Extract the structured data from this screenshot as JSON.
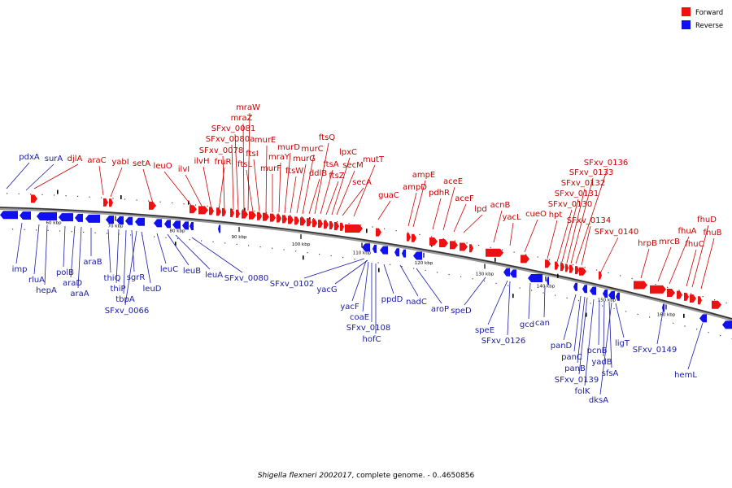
{
  "legend": {
    "forward_label": "Forward",
    "reverse_label": "Reverse",
    "forward_color": "#ee1111",
    "reverse_color": "#1111ee"
  },
  "caption": {
    "organism": "Shigella flexneri 2002017",
    "rest": ", complete genome. - 0..4650856"
  },
  "ticks": [
    "60 kbp",
    "70 kbp",
    "80 kbp",
    "90 kbp",
    "100 kbp",
    "110 kbp",
    "120 kbp",
    "130 kbp",
    "140 kbp",
    "150 kbp",
    "160 kbp"
  ],
  "forward_genes": [
    "djlA",
    "araC",
    "yabI",
    "setA",
    "leuO",
    "ilvI",
    "ilvH",
    "fruR",
    "SFxv_0078",
    "SFxv_0080a",
    "SFxv_0081",
    "mraZ",
    "mraW",
    "ftsL",
    "ftsI",
    "murE",
    "murF",
    "mraY",
    "murD",
    "ftsW",
    "murG",
    "murC",
    "ddlB",
    "ftsQ",
    "ftsA",
    "ftsZ",
    "lpxC",
    "secM",
    "secA",
    "mutT",
    "guaC",
    "ampD",
    "ampE",
    "pdhR",
    "aceE",
    "aceF",
    "lpd",
    "acnB",
    "yacL",
    "cueO",
    "hpt",
    "SFxv_0130",
    "SFxv_0131",
    "SFxv_0132",
    "SFxv_0133",
    "SFxv_0136",
    "SFxv_0134",
    "SFxv_0140",
    "hrpB",
    "mrcB",
    "fhuA",
    "fhuC",
    "fhuD",
    "fhuB"
  ],
  "reverse_genes": [
    "pdxA",
    "surA",
    "imp",
    "rluA",
    "hepA",
    "polB",
    "araD",
    "araA",
    "araB",
    "thiQ",
    "thiP",
    "tbpA",
    "sgrR",
    "SFxv_0066",
    "leuD",
    "leuC",
    "leuB",
    "leuA",
    "SFxv_0080",
    "SFxv_0102",
    "yacG",
    "yacF",
    "coaE",
    "SFxv_0108",
    "hofC",
    "ppdD",
    "nadC",
    "aroP",
    "speD",
    "speE",
    "SFxv_0126",
    "gcd",
    "can",
    "panD",
    "panC",
    "panB",
    "SFxv_0139",
    "folK",
    "pcnB",
    "yadB",
    "sfsA",
    "dksA",
    "ligT",
    "SFxv_0149",
    "hemL"
  ]
}
